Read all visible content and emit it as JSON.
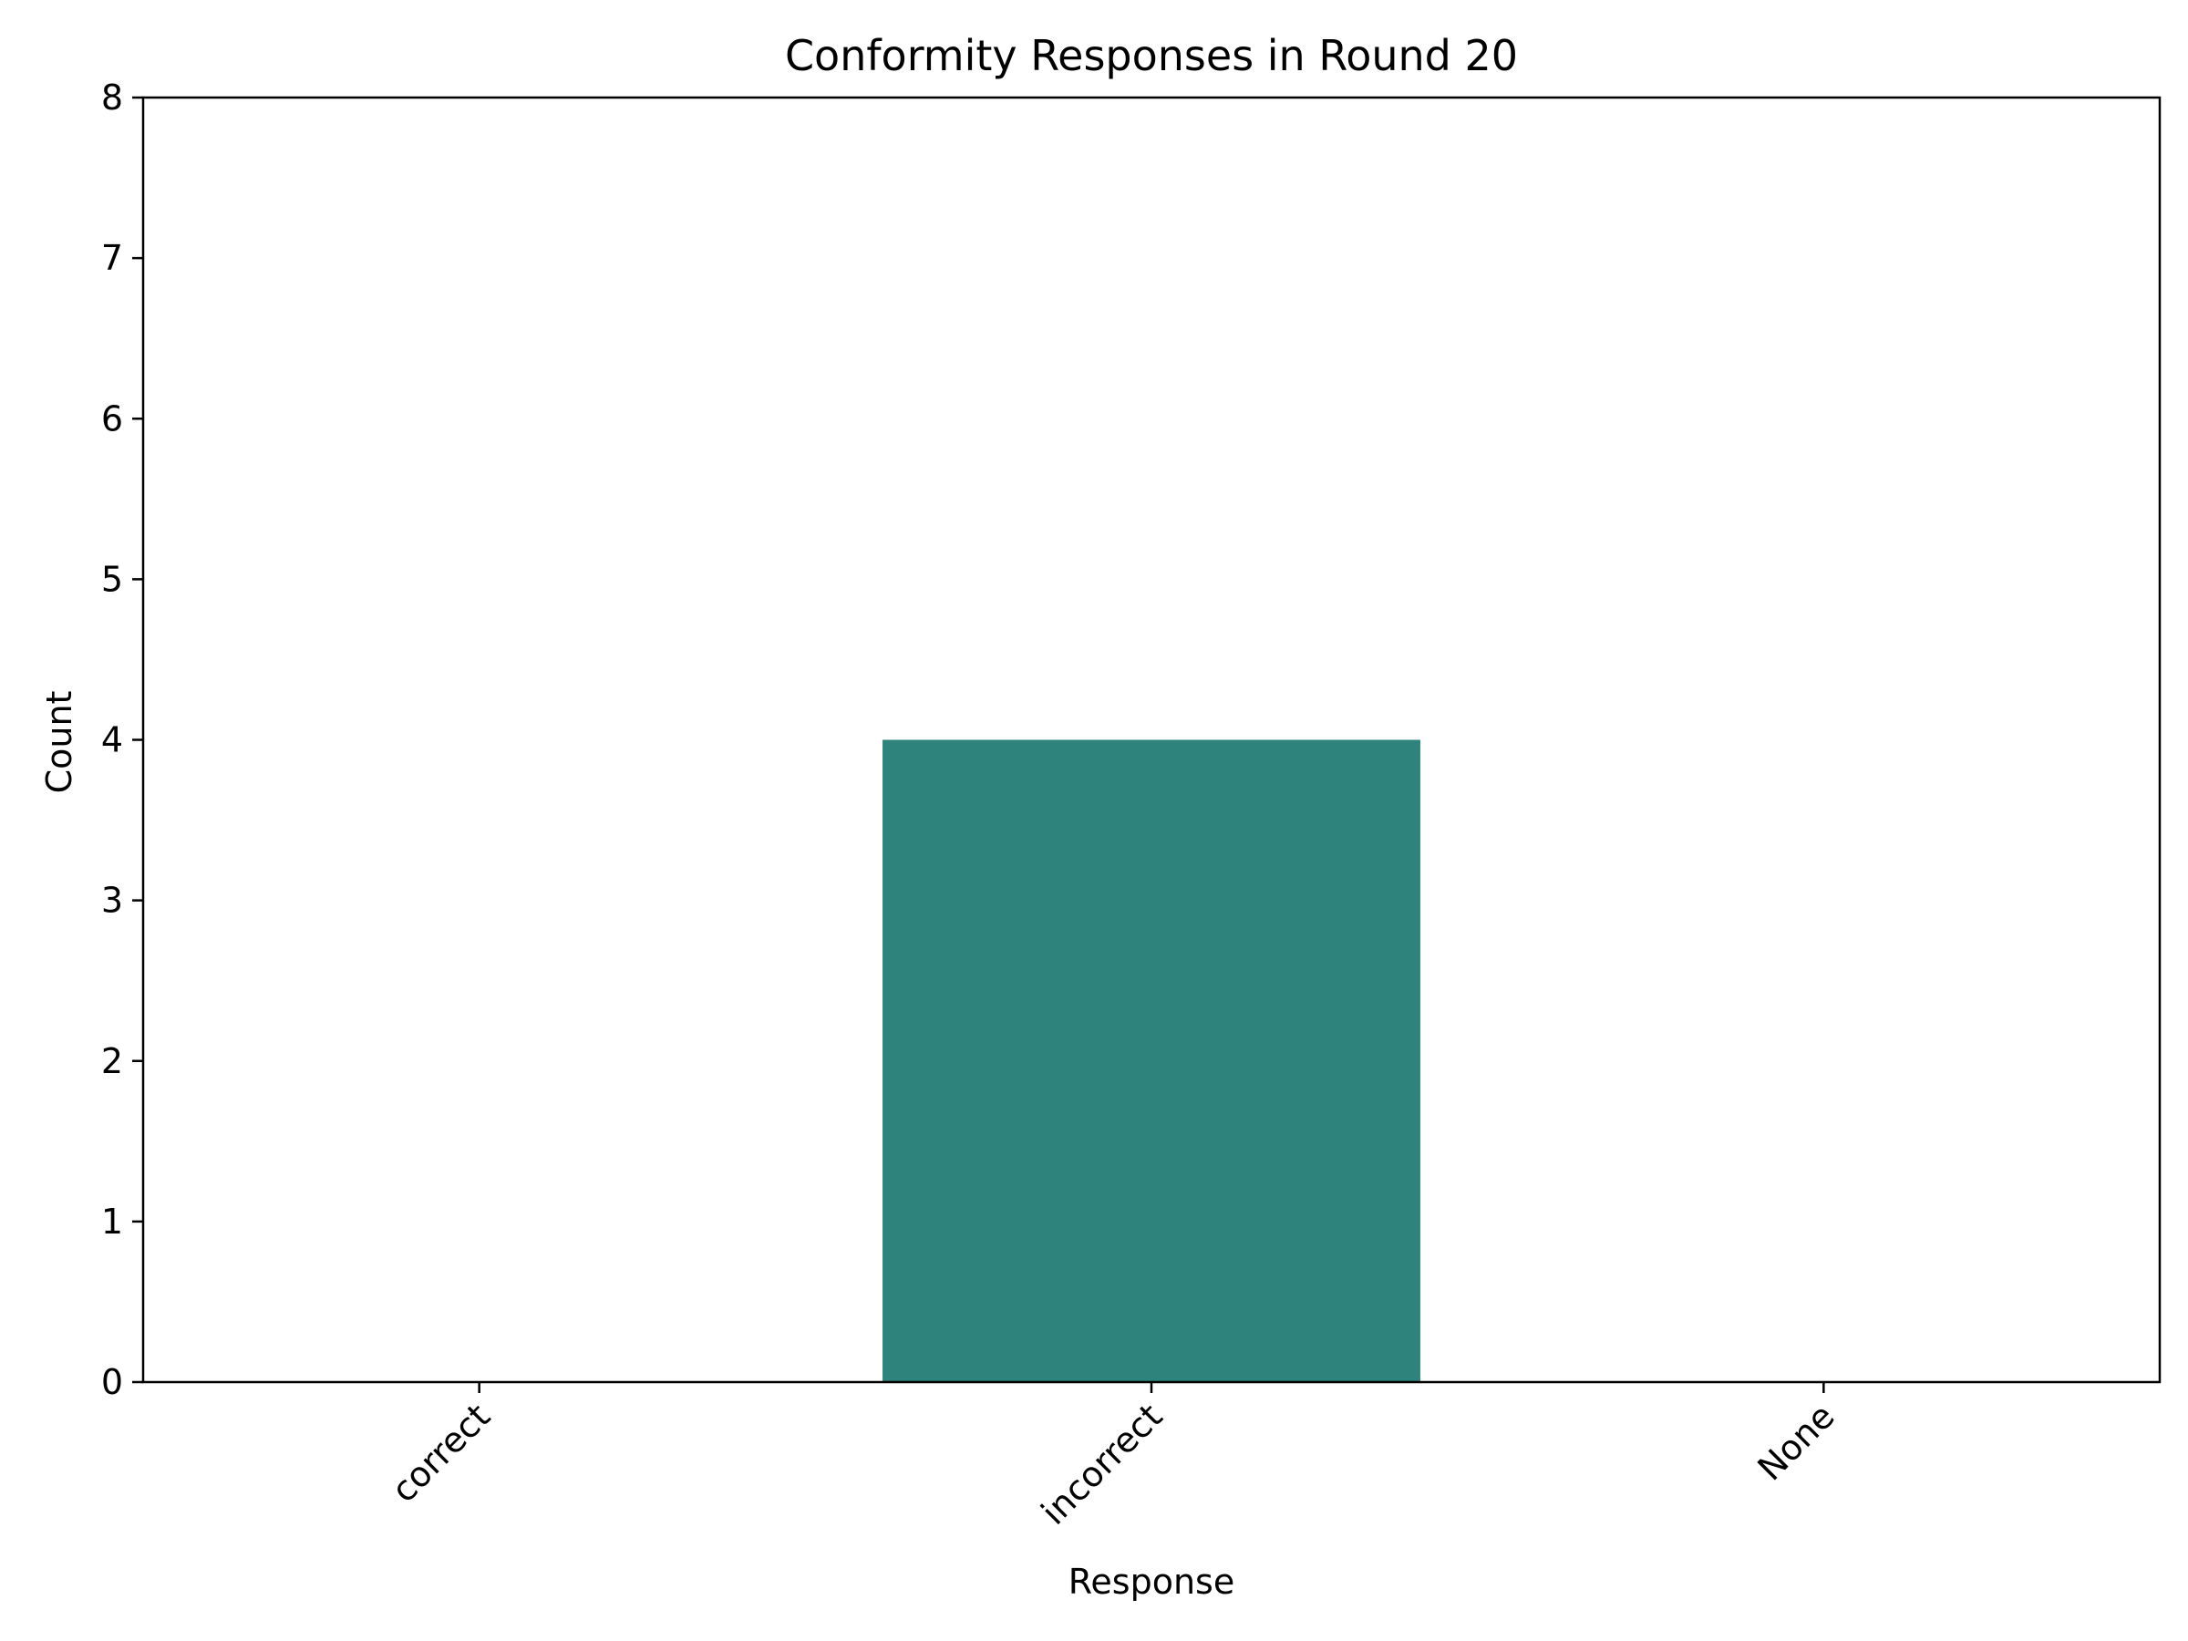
{
  "chart_data": {
    "type": "bar",
    "title": "Conformity Responses in Round 20",
    "xlabel": "Response",
    "ylabel": "Count",
    "categories": [
      "correct",
      "incorrect",
      "None"
    ],
    "values": [
      0,
      4,
      0
    ],
    "ylim": [
      0,
      8
    ],
    "yticks": [
      "0",
      "1",
      "2",
      "3",
      "4",
      "5",
      "6",
      "7",
      "8"
    ],
    "grid": false,
    "bar_color": "#2e837d"
  }
}
